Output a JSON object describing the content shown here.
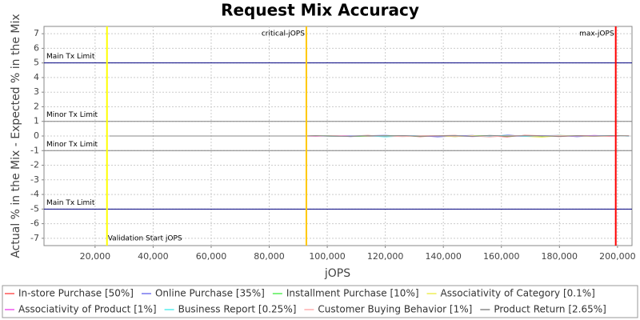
{
  "chart_data": {
    "type": "line",
    "title": "Request Mix Accuracy",
    "x_label": "jOPS",
    "y_label": "Actual % in the Mix - Expected % in the Mix",
    "xlim": [
      2400,
      205000
    ],
    "ylim": [
      -7.5,
      7.5
    ],
    "xticks": [
      {
        "value": 20000,
        "label": "20,000"
      },
      {
        "value": 40000,
        "label": "40,000"
      },
      {
        "value": 60000,
        "label": "60,000"
      },
      {
        "value": 80000,
        "label": "80,000"
      },
      {
        "value": 100000,
        "label": "100,000"
      },
      {
        "value": 120000,
        "label": "120,000"
      },
      {
        "value": 140000,
        "label": "140,000"
      },
      {
        "value": 160000,
        "label": "160,000"
      },
      {
        "value": 180000,
        "label": "180,000"
      },
      {
        "value": 200000,
        "label": "200,000"
      }
    ],
    "yticks": [
      -7,
      -6,
      -5,
      -4,
      -3,
      -2,
      -1,
      0,
      1,
      2,
      3,
      4,
      5,
      6,
      7
    ],
    "grid": true,
    "legend": "bottom",
    "limits": [
      {
        "label": "Main Tx Limit",
        "value": 5,
        "color": "#000080"
      },
      {
        "label": "Minor Tx Limit",
        "value": 1,
        "color": "#808080"
      },
      {
        "label": "Minor Tx Limit",
        "value": -1,
        "color": "#808080"
      },
      {
        "label": "Main Tx Limit",
        "value": -5,
        "color": "#000080"
      }
    ],
    "markers": [
      {
        "label": "Validation Start jOPS",
        "value": 24100,
        "color": "#ffff00"
      },
      {
        "label": "critical-jOPS",
        "value": 92800,
        "color": "#ffc800"
      },
      {
        "label": "max-jOPS",
        "value": 199400,
        "color": "#ff0000"
      }
    ],
    "x": [
      25000,
      50000,
      75000,
      92000,
      96000,
      102000,
      108000,
      114000,
      120000,
      126000,
      132000,
      138000,
      144000,
      150000,
      156000,
      162000,
      168000,
      174000,
      180000,
      186000,
      192000,
      198000,
      204000
    ],
    "series": [
      {
        "name": "In-store Purchase [50%]",
        "color": "#ff5555",
        "values": [
          0,
          0,
          0,
          0,
          0.02,
          -0.03,
          0.01,
          0.04,
          -0.02,
          0.03,
          -0.05,
          0.02,
          0.04,
          -0.03,
          0.01,
          -0.06,
          0.05,
          0.02,
          -0.04,
          0.03,
          0.01,
          -0.02,
          0.02
        ]
      },
      {
        "name": "Online Purchase [35%]",
        "color": "#7777ee",
        "values": [
          0,
          0,
          0,
          0,
          -0.01,
          0.03,
          -0.04,
          0.02,
          0.05,
          -0.02,
          0.03,
          -0.06,
          0.01,
          0.04,
          -0.05,
          0.07,
          -0.03,
          0.02,
          0.04,
          -0.05,
          0.03,
          0.02,
          -0.01
        ]
      },
      {
        "name": "Installment Purchase [10%]",
        "color": "#55ee55",
        "values": [
          0,
          0,
          0,
          0,
          0.01,
          0.02,
          -0.02,
          -0.03,
          0.02,
          0.01,
          -0.02,
          0.03,
          -0.04,
          0.02,
          0.03,
          -0.02,
          0.01,
          -0.03,
          0.04,
          0.01,
          -0.02,
          0.03,
          0.01
        ]
      },
      {
        "name": "Associativity of Category [0.1%]",
        "color": "#eeee55",
        "values": [
          0,
          0,
          0,
          0,
          0.01,
          -0.01,
          0.02,
          -0.02,
          0.01,
          -0.03,
          0.02,
          0.01,
          -0.04,
          0.02,
          -0.01,
          0.03,
          -0.02,
          -0.08,
          0.02,
          0.01,
          -0.03,
          0.02,
          0
        ]
      },
      {
        "name": "Associativity of Product [1%]",
        "color": "#ee55ee",
        "values": [
          0,
          0,
          0,
          0,
          -0.02,
          0.01,
          0.03,
          -0.01,
          -0.03,
          0.02,
          0.01,
          -0.02,
          0.03,
          -0.04,
          0.02,
          0.01,
          -0.03,
          0.02,
          0.01,
          -0.02,
          0.04,
          -0.01,
          0.01
        ]
      },
      {
        "name": "Business Report [0.25%]",
        "color": "#55eeee",
        "values": [
          0,
          0,
          0,
          0,
          0.01,
          -0.02,
          0.01,
          0.02,
          -0.06,
          0.01,
          0.02,
          -0.01,
          0.02,
          -0.02,
          0.01,
          0.04,
          -0.03,
          0.01,
          0.02,
          -0.01,
          0.01,
          0.02,
          -0.01
        ]
      },
      {
        "name": "Customer Buying Behavior [1%]",
        "color": "#ffb0b0",
        "values": [
          0,
          0,
          0,
          0,
          -0.01,
          0.02,
          -0.02,
          0.03,
          0.01,
          -0.04,
          0.02,
          0.03,
          -0.02,
          0.01,
          -0.07,
          0.02,
          0.03,
          -0.01,
          0.02,
          0.01,
          -0.02,
          0.01,
          0.02
        ]
      },
      {
        "name": "Product Return [2.65%]",
        "color": "#888888",
        "values": [
          0,
          0,
          0,
          0,
          0.02,
          -0.01,
          -0.03,
          0.02,
          0.01,
          0.03,
          -0.02,
          0.01,
          0.02,
          -0.03,
          0.04,
          -0.01,
          0.02,
          0.01,
          -0.03,
          0.02,
          -0.01,
          0.03,
          0.01
        ]
      }
    ]
  }
}
